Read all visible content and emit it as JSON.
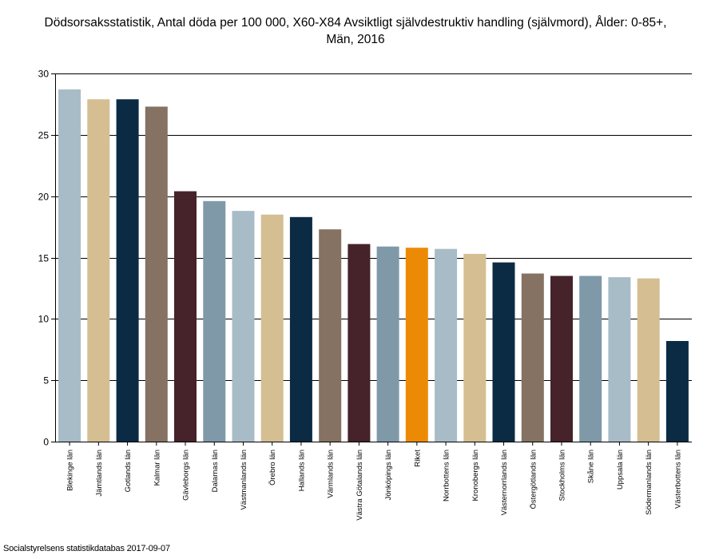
{
  "chart_data": {
    "type": "bar",
    "title": "Dödsorsaksstatistik, Antal döda per 100 000, X60-X84 Avsiktligt självdestruktiv handling (självmord), Ålder: 0-85+,\nMän, 2016",
    "xlabel": "",
    "ylabel": "",
    "ylim": [
      0,
      30
    ],
    "yticks": [
      0,
      5,
      10,
      15,
      20,
      25,
      30
    ],
    "grid": true,
    "legend": "none",
    "categories": [
      "Blekinge län",
      "Jämtlands län",
      "Gotlands län",
      "Kalmar län",
      "Gävleborgs län",
      "Dalarnas län",
      "Västmanlands län",
      "Örebro län",
      "Hallands län",
      "Värmlands län",
      "Västra Götalands län",
      "Jönköpings län",
      "Riket",
      "Norrbottens län",
      "Kronobergs län",
      "Västernorrlands län",
      "Östergötlands län",
      "Stockholms län",
      "Skåne län",
      "Uppsala län",
      "Södermanlands län",
      "Västerbottens län"
    ],
    "values": [
      28.7,
      27.9,
      27.9,
      27.3,
      20.4,
      19.6,
      18.8,
      18.5,
      18.3,
      17.3,
      16.1,
      15.9,
      15.8,
      15.7,
      15.3,
      14.6,
      13.7,
      13.5,
      13.5,
      13.4,
      13.3,
      8.2
    ],
    "colors": [
      "#a8bcc7",
      "#d4be92",
      "#0b2b44",
      "#857262",
      "#46232a",
      "#7f99a9",
      "#a8bcc7",
      "#d4be92",
      "#0b2b44",
      "#857262",
      "#46232a",
      "#7f99a9",
      "#ed8a05",
      "#a8bcc7",
      "#d4be92",
      "#0b2b44",
      "#857262",
      "#46232a",
      "#7f99a9",
      "#a8bcc7",
      "#d4be92",
      "#0b2b44"
    ]
  },
  "footer": {
    "source": "Socialstyrelsens statistikdatabas 2017-09-07"
  }
}
